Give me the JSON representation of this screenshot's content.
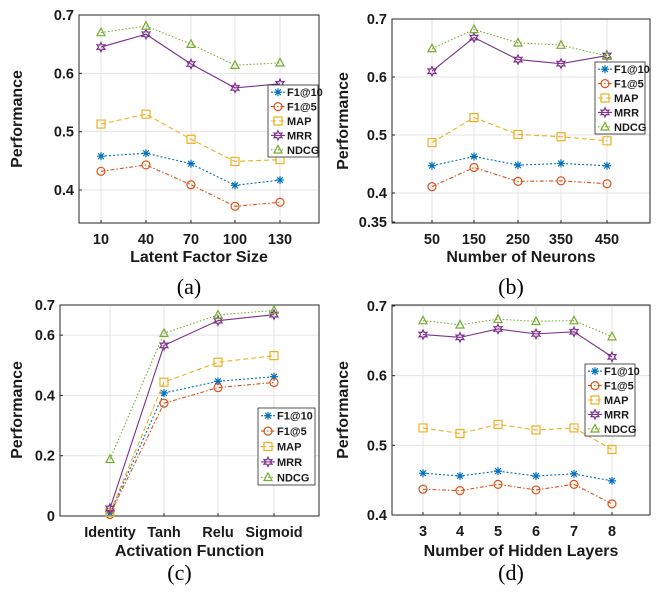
{
  "colors": {
    "F1@10": "#0072bd",
    "F1@5": "#d95319",
    "MAP": "#edb120",
    "MRR": "#7e2f8e",
    "NDCG": "#77ac30"
  },
  "markers": {
    "F1@10": "asterisk",
    "F1@5": "circle",
    "MAP": "square",
    "MRR": "hexagram",
    "NDCG": "triangle"
  },
  "chart_data": [
    {
      "type": "line",
      "caption": "(a)",
      "xlabel": "Latent Factor Size",
      "ylabel": "Performance",
      "x": [
        "10",
        "40",
        "70",
        "100",
        "130"
      ],
      "ylim": [
        0.35,
        0.7
      ],
      "yticks": [
        "0.4",
        "0.5",
        "0.6",
        "0.7"
      ],
      "grid": true,
      "legend": "right",
      "series": [
        {
          "name": "F1@10",
          "values": [
            0.458,
            0.463,
            0.445,
            0.408,
            0.417
          ]
        },
        {
          "name": "F1@5",
          "values": [
            0.432,
            0.443,
            0.409,
            0.372,
            0.379
          ]
        },
        {
          "name": "MAP",
          "values": [
            0.513,
            0.53,
            0.487,
            0.449,
            0.452
          ]
        },
        {
          "name": "MRR",
          "values": [
            0.645,
            0.667,
            0.616,
            0.575,
            0.582
          ]
        },
        {
          "name": "NDCG",
          "values": [
            0.67,
            0.681,
            0.65,
            0.614,
            0.618
          ]
        }
      ]
    },
    {
      "type": "line",
      "caption": "(b)",
      "xlabel": "Number of Neurons",
      "ylabel": "Performance",
      "x": [
        "50",
        "150",
        "250",
        "350",
        "450"
      ],
      "ylim": [
        0.35,
        0.7
      ],
      "yticks": [
        "0.35",
        "0.4",
        "0.5",
        "0.6",
        "0.7"
      ],
      "grid": true,
      "legend": "right",
      "series": [
        {
          "name": "F1@10",
          "values": [
            0.447,
            0.463,
            0.448,
            0.451,
            0.447
          ]
        },
        {
          "name": "F1@5",
          "values": [
            0.411,
            0.444,
            0.42,
            0.421,
            0.416
          ]
        },
        {
          "name": "MAP",
          "values": [
            0.487,
            0.53,
            0.501,
            0.497,
            0.49
          ]
        },
        {
          "name": "MRR",
          "values": [
            0.61,
            0.668,
            0.63,
            0.623,
            0.637
          ]
        },
        {
          "name": "NDCG",
          "values": [
            0.649,
            0.682,
            0.659,
            0.655,
            0.636
          ]
        }
      ]
    },
    {
      "type": "line",
      "caption": "(c)",
      "xlabel": "Activation Function",
      "ylabel": "Performance",
      "x": [
        "Identity",
        "Tanh",
        "Relu",
        "Sigmoid"
      ],
      "ylim": [
        0,
        0.7
      ],
      "yticks": [
        "0",
        "0.2",
        "0.4",
        "0.6",
        "0.7"
      ],
      "grid": true,
      "legend": "bottom-right",
      "series": [
        {
          "name": "F1@10",
          "values": [
            0.01,
            0.408,
            0.447,
            0.462
          ]
        },
        {
          "name": "F1@5",
          "values": [
            0.005,
            0.374,
            0.426,
            0.443
          ]
        },
        {
          "name": "MAP",
          "values": [
            0.012,
            0.444,
            0.51,
            0.532
          ]
        },
        {
          "name": "MRR",
          "values": [
            0.025,
            0.566,
            0.648,
            0.668
          ]
        },
        {
          "name": "NDCG",
          "values": [
            0.188,
            0.606,
            0.667,
            0.682
          ]
        }
      ]
    },
    {
      "type": "line",
      "caption": "(d)",
      "xlabel": "Number of Hidden Layers",
      "ylabel": "Performance",
      "x": [
        "3",
        "4",
        "5",
        "6",
        "7",
        "8"
      ],
      "ylim": [
        0.4,
        0.7
      ],
      "yticks": [
        "0.4",
        "0.5",
        "0.6",
        "0.7"
      ],
      "grid": true,
      "legend": "right",
      "series": [
        {
          "name": "F1@10",
          "values": [
            0.46,
            0.456,
            0.463,
            0.456,
            0.459,
            0.449
          ]
        },
        {
          "name": "F1@5",
          "values": [
            0.437,
            0.435,
            0.444,
            0.436,
            0.444,
            0.416
          ]
        },
        {
          "name": "MAP",
          "values": [
            0.525,
            0.517,
            0.53,
            0.522,
            0.525,
            0.494
          ]
        },
        {
          "name": "MRR",
          "values": [
            0.659,
            0.655,
            0.667,
            0.66,
            0.663,
            0.627
          ]
        },
        {
          "name": "NDCG",
          "values": [
            0.679,
            0.673,
            0.681,
            0.678,
            0.679,
            0.656
          ]
        }
      ]
    }
  ]
}
